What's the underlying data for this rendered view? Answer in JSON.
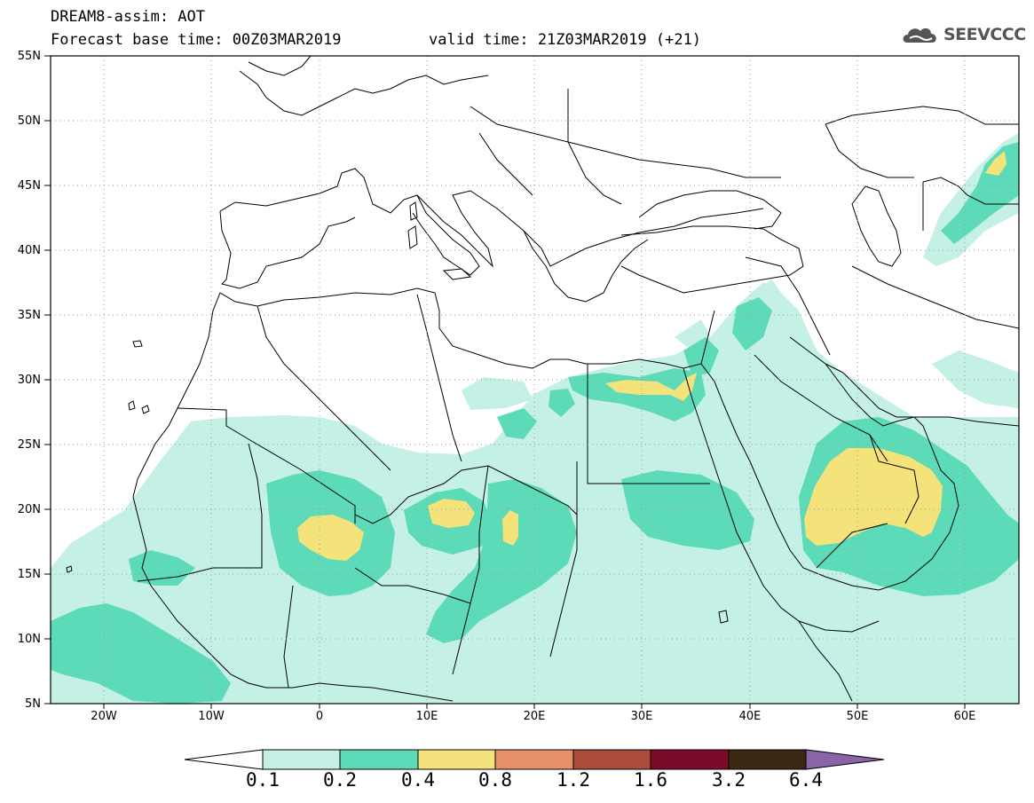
{
  "header": {
    "title_line1": "DREAM8-assim: AOT",
    "title_line2": "Forecast base time: 00Z03MAR2019",
    "valid_time": "valid time: 21Z03MAR2019 (+21)",
    "logo_text": "SEEVCCC"
  },
  "map": {
    "lat_labels": [
      "55N",
      "50N",
      "45N",
      "40N",
      "35N",
      "30N",
      "25N",
      "20N",
      "15N",
      "10N",
      "5N"
    ],
    "lon_labels": [
      "20W",
      "10W",
      "0",
      "10E",
      "20E",
      "30E",
      "40E",
      "50E",
      "60E"
    ],
    "lat_range": [
      5,
      55
    ],
    "lon_range": [
      -25,
      65
    ],
    "grid": "dotted"
  },
  "colorbar": {
    "labels": [
      "0.1",
      "0.2",
      "0.4",
      "0.8",
      "1.2",
      "1.6",
      "3.2",
      "6.4"
    ],
    "colors": [
      "#ffffff",
      "#c4f0e6",
      "#5ddbb8",
      "#f4e27a",
      "#e8906a",
      "#aa4b3c",
      "#7a0c28",
      "#3d2814",
      "#8a64a8"
    ]
  },
  "colors": {
    "aot_0_1_0_2": "#c4f0e6",
    "aot_0_2_0_4": "#5ddbb8",
    "aot_0_4_0_8": "#f4e27a"
  }
}
